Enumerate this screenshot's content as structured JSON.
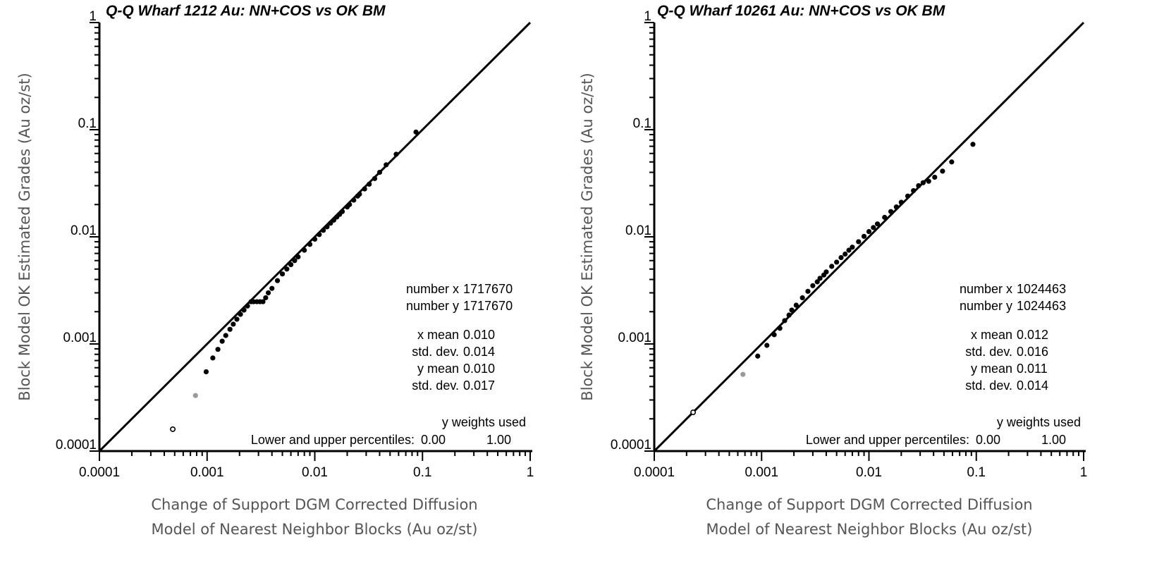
{
  "chart_data": [
    {
      "type": "scatter",
      "title": "Q-Q Wharf 1212 Au: NN+COS vs OK BM",
      "xlabel": [
        "Change of Support DGM Corrected Diffusion",
        "Model of Nearest Neighbor Blocks (Au oz/st)"
      ],
      "ylabel": "Block Model OK Estimated Grades (Au oz/st)",
      "xscale": "log",
      "yscale": "log",
      "xlim": [
        0.0001,
        1
      ],
      "ylim": [
        0.0001,
        1
      ],
      "xticks": [
        "0.0001",
        "0.001",
        "0.01",
        "0.1",
        "1"
      ],
      "yticks": [
        "0.0001",
        "0.001",
        "0.01",
        "0.1",
        "1"
      ],
      "reference_line": "y = x",
      "special_points": [
        {
          "style": "open",
          "x": 0.00048,
          "y": 0.00016
        },
        {
          "style": "gray",
          "x": 0.00078,
          "y": 0.00033
        }
      ],
      "points": [
        [
          0.00098,
          0.00055
        ],
        [
          0.00113,
          0.00074
        ],
        [
          0.00126,
          0.00089
        ],
        [
          0.00138,
          0.00106
        ],
        [
          0.00149,
          0.0012
        ],
        [
          0.00163,
          0.00137
        ],
        [
          0.00175,
          0.00153
        ],
        [
          0.00189,
          0.0017
        ],
        [
          0.00204,
          0.00189
        ],
        [
          0.0022,
          0.00207
        ],
        [
          0.00237,
          0.00226
        ],
        [
          0.00256,
          0.00248
        ],
        [
          0.0027,
          0.00248
        ],
        [
          0.0029,
          0.00248
        ],
        [
          0.0031,
          0.00248
        ],
        [
          0.0033,
          0.00248
        ],
        [
          0.0035,
          0.0027
        ],
        [
          0.0037,
          0.003
        ],
        [
          0.004,
          0.0033
        ],
        [
          0.0045,
          0.0039
        ],
        [
          0.005,
          0.0045
        ],
        [
          0.0055,
          0.005
        ],
        [
          0.006,
          0.0055
        ],
        [
          0.0065,
          0.006
        ],
        [
          0.007,
          0.0065
        ],
        [
          0.008,
          0.0075
        ],
        [
          0.009,
          0.0085
        ],
        [
          0.01,
          0.0095
        ],
        [
          0.011,
          0.0105
        ],
        [
          0.012,
          0.0115
        ],
        [
          0.013,
          0.0124
        ],
        [
          0.014,
          0.0134
        ],
        [
          0.015,
          0.0143
        ],
        [
          0.016,
          0.0153
        ],
        [
          0.017,
          0.0162
        ],
        [
          0.018,
          0.0172
        ],
        [
          0.02,
          0.019
        ],
        [
          0.021,
          0.02
        ],
        [
          0.023,
          0.022
        ],
        [
          0.025,
          0.024
        ],
        [
          0.026,
          0.025
        ],
        [
          0.029,
          0.028
        ],
        [
          0.032,
          0.031
        ],
        [
          0.036,
          0.035
        ],
        [
          0.04,
          0.04
        ],
        [
          0.046,
          0.047
        ],
        [
          0.057,
          0.059
        ],
        [
          0.087,
          0.095
        ]
      ],
      "stats": [
        {
          "label": "number x",
          "value": "1717670"
        },
        {
          "label": "number y",
          "value": "1717670"
        },
        {
          "label": "x mean",
          "value": "0.010"
        },
        {
          "label": "std. dev.",
          "value": "0.014"
        },
        {
          "label": "y mean",
          "value": "0.010"
        },
        {
          "label": "std. dev.",
          "value": "0.017"
        }
      ],
      "weights_note": "y weights used",
      "percentiles_label": "Lower and upper percentiles:",
      "percentiles_lower": "0.00",
      "percentiles_upper": "1.00"
    },
    {
      "type": "scatter",
      "title": "Q-Q Wharf 10261 Au: NN+COS vs OK BM",
      "xlabel": [
        "Change of Support DGM Corrected Diffusion",
        "Model of Nearest Neighbor Blocks (Au oz/st)"
      ],
      "ylabel": "Block Model OK Estimated Grades (Au oz/st)",
      "xscale": "log",
      "yscale": "log",
      "xlim": [
        0.0001,
        1
      ],
      "ylim": [
        0.0001,
        1
      ],
      "xticks": [
        "0.0001",
        "0.001",
        "0.01",
        "0.1",
        "1"
      ],
      "yticks": [
        "0.0001",
        "0.001",
        "0.01",
        "0.1",
        "1"
      ],
      "reference_line": "y = x",
      "special_points": [
        {
          "style": "open",
          "x": 0.00023,
          "y": 0.00023
        },
        {
          "style": "gray",
          "x": 0.00067,
          "y": 0.00052
        }
      ],
      "points": [
        [
          0.00092,
          0.00077
        ],
        [
          0.00112,
          0.00097
        ],
        [
          0.00131,
          0.00122
        ],
        [
          0.00148,
          0.0014
        ],
        [
          0.00164,
          0.00165
        ],
        [
          0.0018,
          0.00186
        ],
        [
          0.00191,
          0.00207
        ],
        [
          0.0021,
          0.0023
        ],
        [
          0.0024,
          0.0027
        ],
        [
          0.0027,
          0.0031
        ],
        [
          0.003,
          0.0035
        ],
        [
          0.0033,
          0.0038
        ],
        [
          0.0035,
          0.0041
        ],
        [
          0.0038,
          0.0044
        ],
        [
          0.004,
          0.0047
        ],
        [
          0.0045,
          0.0053
        ],
        [
          0.005,
          0.0058
        ],
        [
          0.0055,
          0.0064
        ],
        [
          0.006,
          0.0069
        ],
        [
          0.0065,
          0.0075
        ],
        [
          0.007,
          0.008
        ],
        [
          0.008,
          0.009
        ],
        [
          0.009,
          0.0101
        ],
        [
          0.01,
          0.0112
        ],
        [
          0.011,
          0.0122
        ],
        [
          0.012,
          0.0132
        ],
        [
          0.014,
          0.0152
        ],
        [
          0.016,
          0.0172
        ],
        [
          0.018,
          0.019
        ],
        [
          0.02,
          0.021
        ],
        [
          0.023,
          0.024
        ],
        [
          0.026,
          0.027
        ],
        [
          0.029,
          0.03
        ],
        [
          0.032,
          0.032
        ],
        [
          0.036,
          0.033
        ],
        [
          0.041,
          0.036
        ],
        [
          0.0485,
          0.041
        ],
        [
          0.059,
          0.05
        ],
        [
          0.093,
          0.073
        ]
      ],
      "stats": [
        {
          "label": "number x",
          "value": "1024463"
        },
        {
          "label": "number y",
          "value": "1024463"
        },
        {
          "label": "x mean",
          "value": "0.012"
        },
        {
          "label": "std. dev.",
          "value": "0.016"
        },
        {
          "label": "y mean",
          "value": "0.011"
        },
        {
          "label": "std. dev.",
          "value": "0.014"
        }
      ],
      "weights_note": "y weights used",
      "percentiles_label": "Lower and upper percentiles:",
      "percentiles_lower": "0.00",
      "percentiles_upper": "1.00"
    }
  ]
}
